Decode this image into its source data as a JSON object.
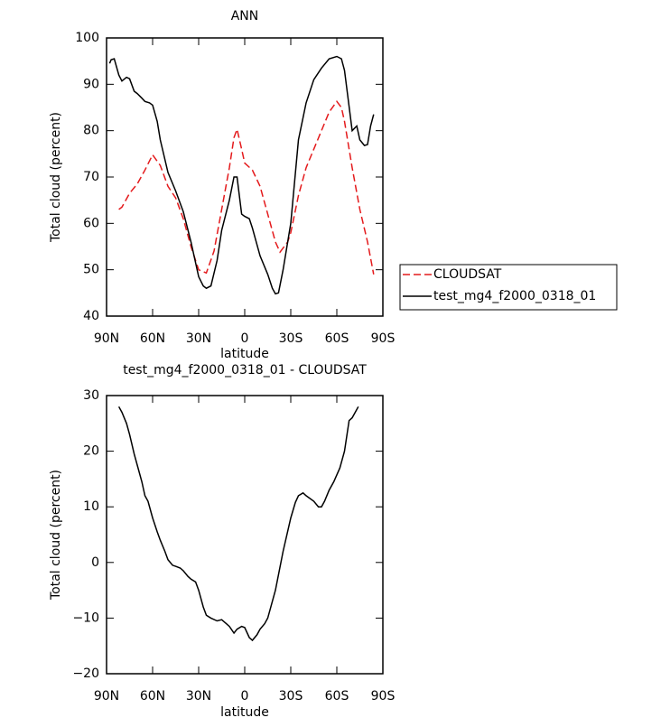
{
  "chart_data": [
    {
      "type": "line",
      "title": "ANN",
      "x_label": "latitude",
      "y_label": "Total cloud (percent)",
      "xlim": [
        90,
        -90
      ],
      "ylim": [
        40,
        100
      ],
      "xticks": [
        {
          "value": 90,
          "label": "90N"
        },
        {
          "value": 60,
          "label": "60N"
        },
        {
          "value": 30,
          "label": "30N"
        },
        0,
        {
          "value": -30,
          "label": "30S"
        },
        {
          "value": -60,
          "label": "60S"
        },
        {
          "value": -90,
          "label": "90S"
        }
      ],
      "yticks": [
        40,
        50,
        60,
        70,
        80,
        90,
        100
      ],
      "legend": "outside-right",
      "series": [
        {
          "name": "CLOUDSAT",
          "color": "#e41a1c",
          "dashed": true,
          "x": [
            82,
            80,
            75,
            70,
            65,
            60,
            55,
            50,
            45,
            40,
            35,
            30,
            25,
            20,
            15,
            10,
            7,
            5,
            2,
            0,
            -5,
            -10,
            -15,
            -20,
            -23,
            -28,
            -30,
            -35,
            -40,
            -45,
            -50,
            -55,
            -60,
            -63,
            -65,
            -70,
            -75,
            -80,
            -84
          ],
          "values": [
            63,
            63.5,
            66.5,
            68.5,
            71.5,
            74.8,
            72.5,
            68,
            65.5,
            61,
            55,
            50,
            49.3,
            54,
            63,
            72,
            78.5,
            80.3,
            76,
            73,
            71.5,
            68,
            62,
            56,
            53.8,
            56,
            58,
            66,
            72,
            76,
            80,
            84,
            86.3,
            85,
            82,
            72,
            63,
            56,
            49
          ]
        },
        {
          "name": "test_mg4_f2000_0318_01",
          "color": "#000000",
          "dashed": false,
          "x": [
            88,
            87,
            85,
            82,
            80,
            77,
            75,
            72,
            70,
            67,
            65,
            62,
            60,
            57,
            55,
            50,
            45,
            40,
            35,
            30,
            27,
            25,
            22,
            18,
            15,
            10,
            7,
            5,
            2,
            0,
            -3,
            -5,
            -10,
            -15,
            -18,
            -20,
            -22,
            -25,
            -30,
            -35,
            -40,
            -45,
            -50,
            -55,
            -60,
            -63,
            -65,
            -70,
            -73,
            -75,
            -78,
            -80,
            -82,
            -84
          ],
          "values": [
            94.5,
            95.3,
            95.5,
            92,
            90.7,
            91.5,
            91.2,
            88.5,
            88,
            87,
            86.3,
            86,
            85.5,
            82,
            78,
            71,
            67,
            62.5,
            56,
            48.5,
            46.5,
            46,
            46.5,
            52,
            58.5,
            65,
            70,
            70,
            62,
            61.5,
            61,
            59,
            53,
            49,
            46,
            44.8,
            45,
            50,
            60,
            78,
            86,
            91,
            93.5,
            95.5,
            96,
            95.5,
            93,
            80,
            81,
            78,
            76.8,
            77,
            81,
            83.5
          ]
        }
      ]
    },
    {
      "type": "line",
      "title": "test_mg4_f2000_0318_01 - CLOUDSAT",
      "x_label": "latitude",
      "y_label": "Total cloud (percent)",
      "xlim": [
        90,
        -90
      ],
      "ylim": [
        -20,
        30
      ],
      "xticks": [
        {
          "value": 90,
          "label": "90N"
        },
        {
          "value": 60,
          "label": "60N"
        },
        {
          "value": 30,
          "label": "30N"
        },
        0,
        {
          "value": -30,
          "label": "30S"
        },
        {
          "value": -60,
          "label": "60S"
        },
        {
          "value": -90,
          "label": "90S"
        }
      ],
      "yticks": [
        {
          "value": -20,
          "label": "−20"
        },
        {
          "value": -10,
          "label": "−10"
        },
        0,
        10,
        20,
        30
      ],
      "color": "#000000",
      "x": [
        82,
        80,
        77,
        75,
        72,
        70,
        67,
        65,
        63,
        60,
        57,
        55,
        52,
        50,
        47,
        45,
        42,
        40,
        37,
        35,
        32,
        30,
        27,
        25,
        22,
        18,
        15,
        12,
        10,
        7,
        5,
        2,
        0,
        -3,
        -5,
        -8,
        -10,
        -13,
        -15,
        -20,
        -25,
        -30,
        -33,
        -35,
        -38,
        -40,
        -45,
        -48,
        -50,
        -52,
        -55,
        -58,
        -62,
        -65,
        -68,
        -70,
        -72,
        -74
      ],
      "values": [
        28,
        27,
        25,
        23,
        19.5,
        17.5,
        14.5,
        12,
        11,
        8,
        5.5,
        4,
        2,
        0.5,
        -0.5,
        -0.7,
        -1,
        -1.5,
        -2.5,
        -3,
        -3.5,
        -5,
        -8,
        -9.5,
        -10,
        -10.5,
        -10.3,
        -11,
        -11.5,
        -12.7,
        -12,
        -11.5,
        -11.7,
        -13.5,
        -14,
        -13,
        -12,
        -11,
        -10,
        -5,
        2,
        8,
        10.8,
        12,
        12.5,
        12,
        11,
        10,
        10,
        11,
        13,
        14.5,
        17,
        20,
        25.5,
        26,
        27,
        28
      ]
    }
  ]
}
